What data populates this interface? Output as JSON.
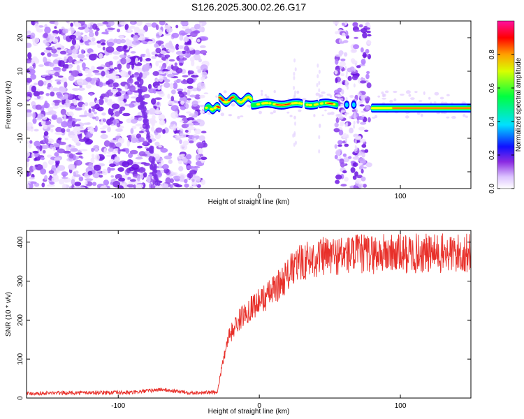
{
  "title": "S126.2025.300.02.26.G17",
  "chart_data": [
    {
      "type": "heatmap",
      "xlabel": "Height of straight line (km)",
      "ylabel": "Frequency (Hz)",
      "xlim": [
        -165,
        150
      ],
      "ylim": [
        -25,
        25
      ],
      "xticks": [
        -100,
        0,
        100
      ],
      "yticks": [
        -20,
        -10,
        0,
        10,
        20
      ],
      "colorbar": {
        "label": "Normalized spectral amplitude",
        "range": [
          0,
          1
        ],
        "ticks": [
          "0.0",
          "0.2",
          "0.4",
          "0.6",
          "0.8"
        ],
        "colormap": [
          "#ffffff",
          "#e6d5ff",
          "#8a2be2",
          "#0000ff",
          "#00ffff",
          "#00ff00",
          "#ffff00",
          "#ff0000",
          "#ff00ff"
        ]
      },
      "features": {
        "noise_region_km": [
          -165,
          -38
        ],
        "noise_band_km": [
          54,
          78
        ],
        "signal_segments": [
          {
            "x_start": -38,
            "x_end": 55,
            "freq_hz": 0.5,
            "peak_amplitude": 0.85
          },
          {
            "x_start": 80,
            "x_end": 150,
            "freq_hz": -1.0,
            "peak_amplitude": 0.95
          }
        ]
      }
    },
    {
      "type": "line",
      "xlabel": "Height of straight line (km)",
      "ylabel": "SNR (10 * v/v)",
      "xlim": [
        -165,
        150
      ],
      "ylim": [
        0,
        430
      ],
      "xticks": [
        -100,
        0,
        100
      ],
      "yticks": [
        0,
        100,
        200,
        300,
        400
      ],
      "color": "#e8302a",
      "series": [
        {
          "x": [
            -165,
            -120,
            -90,
            -70,
            -50,
            -30,
            -25,
            -22,
            -20,
            -15,
            -10,
            -5,
            0,
            5,
            10,
            15,
            20,
            25,
            30,
            35,
            40,
            50,
            60,
            70,
            80,
            90,
            100,
            110,
            120,
            130,
            140,
            150
          ],
          "values": [
            10,
            12,
            12,
            20,
            12,
            12,
            110,
            160,
            170,
            200,
            220,
            240,
            250,
            265,
            280,
            300,
            320,
            340,
            355,
            360,
            365,
            370,
            372,
            375,
            375,
            376,
            375,
            376,
            375,
            375,
            376,
            375
          ]
        }
      ]
    }
  ]
}
